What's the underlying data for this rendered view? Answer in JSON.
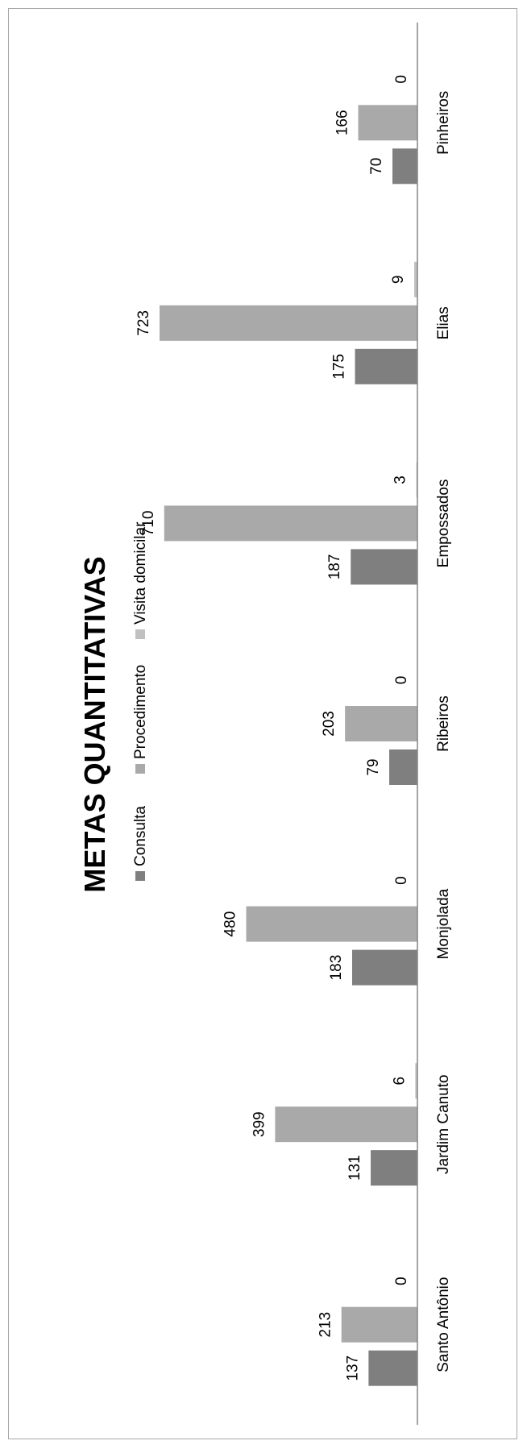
{
  "chart_data": {
    "type": "bar",
    "orientation": "rotated-90",
    "title": "METAS QUANTITATIVAS",
    "categories": [
      "Santo Antônio",
      "Jardim Canuto",
      "Monjolada",
      "Ribeiros",
      "Empossados",
      "Elias",
      "Pinheiros"
    ],
    "series": [
      {
        "name": "Consulta",
        "color": "#7f7f7f",
        "values": [
          137,
          131,
          183,
          79,
          187,
          175,
          70
        ]
      },
      {
        "name": "Procedimento",
        "color": "#a9a9a9",
        "values": [
          213,
          399,
          480,
          203,
          710,
          723,
          166
        ]
      },
      {
        "name": "Visita domicilar",
        "color": "#c0c0c0",
        "values": [
          0,
          6,
          0,
          0,
          3,
          9,
          0
        ]
      }
    ],
    "ylim": [
      0,
      750
    ],
    "grid": false,
    "data_labels": true,
    "legend_position": "top"
  }
}
